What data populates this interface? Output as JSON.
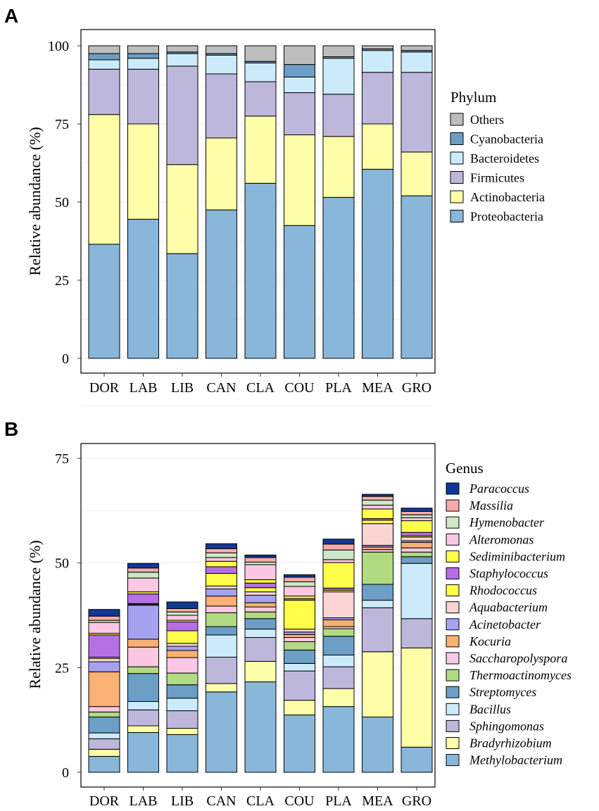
{
  "chart_data": [
    {
      "panel": "A",
      "type": "bar",
      "stacked": true,
      "ylabel": "Relative abundance (%)",
      "ylim": [
        0,
        100
      ],
      "yticks": [
        0,
        25,
        50,
        75,
        100
      ],
      "categories": [
        "DOR",
        "LAB",
        "LIB",
        "CAN",
        "CLA",
        "COU",
        "PLA",
        "MEA",
        "GRO"
      ],
      "legend_title": "Phylum",
      "legend_position": "right",
      "series": [
        {
          "name": "Proteobacteria",
          "color": "#88B7DA",
          "values": [
            36.5,
            44.5,
            33.5,
            47.5,
            56,
            42.5,
            51.5,
            60.5,
            52
          ]
        },
        {
          "name": "Actinobacteria",
          "color": "#FFFFAA",
          "values": [
            41.5,
            30.5,
            28.5,
            23,
            21.5,
            29,
            19.5,
            14.5,
            14
          ]
        },
        {
          "name": "Firmicutes",
          "color": "#BDB8DB",
          "values": [
            14.5,
            17.5,
            31.5,
            20.5,
            11,
            13.5,
            13.5,
            16.5,
            25.5
          ]
        },
        {
          "name": "Bacteroidetes",
          "color": "#CCEBFA",
          "values": [
            3,
            3.5,
            4,
            6,
            6,
            5,
            11.5,
            7,
            6.5
          ]
        },
        {
          "name": "Cyanobacteria",
          "color": "#6C9EC6",
          "values": [
            2,
            1.5,
            0.5,
            0.5,
            0.5,
            4,
            0.5,
            0.5,
            0.5
          ]
        },
        {
          "name": "Others",
          "color": "#BDBDBD",
          "values": [
            2.5,
            2.5,
            2,
            2.5,
            5,
            6,
            3.5,
            1,
            1.5
          ]
        }
      ]
    },
    {
      "panel": "B",
      "type": "bar",
      "stacked": true,
      "ylabel": "Relative abundance (%)",
      "ylim": [
        0,
        75
      ],
      "yticks": [
        0,
        25,
        50,
        75
      ],
      "categories": [
        "DOR",
        "LAB",
        "LIB",
        "CAN",
        "CLA",
        "COU",
        "PLA",
        "MEA",
        "GRO"
      ],
      "legend_title": "Genus",
      "legend_position": "right",
      "series": [
        {
          "name": "Methylobacterium",
          "color": "#88B7DA",
          "values": [
            3.8,
            9.5,
            9,
            19.2,
            21.6,
            13.7,
            15.7,
            13.2,
            6
          ]
        },
        {
          "name": "Bradyrhizobium",
          "color": "#FFFFAA",
          "values": [
            1.7,
            1.6,
            1.5,
            2,
            4.9,
            3.5,
            4.3,
            15.6,
            23.7
          ]
        },
        {
          "name": "Sphingomonas",
          "color": "#BDB8DB",
          "values": [
            2.5,
            3.8,
            4.2,
            6.3,
            5.7,
            7,
            5.2,
            10.5,
            7
          ]
        },
        {
          "name": "Bacillus",
          "color": "#CCEBFA",
          "values": [
            1.4,
            2,
            3,
            5.3,
            2,
            1.8,
            2.8,
            1.8,
            13.2
          ]
        },
        {
          "name": "Streptomyces",
          "color": "#6C9EC6",
          "values": [
            3.8,
            6.7,
            3.2,
            2,
            2.5,
            3.2,
            4.5,
            3.8,
            1.6
          ]
        },
        {
          "name": "Thermoactinomyces",
          "color": "#B2DA83",
          "values": [
            1.2,
            1.6,
            2.8,
            3.3,
            1.6,
            2,
            1.8,
            7.7,
            1.1
          ]
        },
        {
          "name": "Saccharopolyspora",
          "color": "#FBC8E3",
          "values": [
            1.3,
            4.7,
            3.7,
            1.6,
            1.2,
            1,
            0.5,
            0.6,
            1
          ]
        },
        {
          "name": "Kocuria",
          "color": "#FBB173",
          "values": [
            8.3,
            1.9,
            1.7,
            2.4,
            1,
            0.7,
            1.6,
            0.6,
            1.3
          ]
        },
        {
          "name": "Acinetobacter",
          "color": "#A5A3F0",
          "values": [
            2.4,
            8.1,
            1,
            1.7,
            1.8,
            0.6,
            0.5,
            0.4,
            0.4
          ]
        },
        {
          "name": "Aquabacterium",
          "color": "#FCD4D4",
          "values": [
            0.8,
            0.2,
            0.7,
            0.7,
            0.8,
            0.7,
            6.2,
            5.2,
            0.9
          ]
        },
        {
          "name": "Rhodococcus",
          "color": "#FFFF4B",
          "values": [
            0.3,
            0.2,
            3,
            3,
            1,
            6.9,
            0.4,
            0.8,
            0.3
          ]
        },
        {
          "name": "Staphylococcus",
          "color": "#B76FE6",
          "values": [
            5.3,
            2.3,
            2.1,
            1.6,
            1.1,
            0.4,
            0.5,
            0.4,
            0.8
          ]
        },
        {
          "name": "Sediminibacterium",
          "color": "#FFFF4B",
          "values": [
            0.4,
            0.5,
            0.4,
            1.3,
            0.8,
            0.6,
            6.1,
            2.3,
            2.8
          ]
        },
        {
          "name": "Alteromonas",
          "color": "#FBC8E3",
          "values": [
            2.6,
            3.3,
            1.2,
            0.9,
            3.6,
            2.3,
            0.7,
            0.9,
            0.7
          ]
        },
        {
          "name": "Hymenobacter",
          "color": "#CDE8C6",
          "values": [
            0.5,
            1.4,
            0.8,
            1.1,
            0.6,
            1.1,
            2.3,
            1.2,
            0.7
          ]
        },
        {
          "name": "Massilia",
          "color": "#F8AAAA",
          "values": [
            1,
            1,
            0.8,
            1,
            1.1,
            1.1,
            1.4,
            0.9,
            0.8
          ]
        },
        {
          "name": "Paracoccus",
          "color": "#103994",
          "values": [
            1.6,
            1.1,
            1.6,
            1.2,
            0.6,
            0.6,
            1.2,
            0.5,
            0.8
          ]
        }
      ]
    }
  ]
}
